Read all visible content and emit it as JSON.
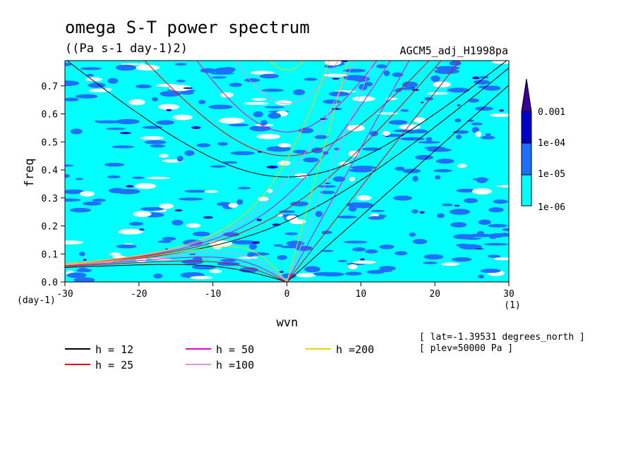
{
  "chart_data": {
    "type": "heatmap",
    "title": "omega S-T power spectrum",
    "subtitle": "((Pa s-1 day-1)2)",
    "run_label": "AGCM5_adj_H1998pa",
    "xlabel": "wvn",
    "ylabel": "freq",
    "x_unit": "(1)",
    "y_unit": "(day-1)",
    "xlim": [
      -30,
      30
    ],
    "ylim": [
      0,
      0.79
    ],
    "xticks": [
      -30,
      -20,
      -10,
      0,
      10,
      20,
      30
    ],
    "xtick_labels": [
      "-30",
      "-20",
      "-10",
      "0",
      "10",
      "20",
      "30"
    ],
    "yticks": [
      0,
      0.1,
      0.2,
      0.3,
      0.4,
      0.5,
      0.6,
      0.7
    ],
    "ytick_labels": [
      "0.0",
      "0.1",
      "0.2",
      "0.3",
      "0.4",
      "0.5",
      "0.6",
      "0.7"
    ],
    "colorbar": {
      "labels": [
        "0.001",
        "1e-04",
        "1e-05",
        "1e-06"
      ],
      "levels": [
        1e-06,
        1e-05,
        0.0001,
        0.001
      ],
      "colors": [
        "#00ffff",
        "#1e6eff",
        "#0000c8",
        "#3c0096"
      ]
    },
    "field_colors": {
      "below": "#ffffff",
      "level1": "#00ffff",
      "level2": "#1e6eff",
      "level3": "#0000c8"
    },
    "dispersion_curves": [
      {
        "label": "h = 12",
        "h": 12,
        "color": "#000000"
      },
      {
        "label": "h = 25",
        "h": 25,
        "color": "#e60000"
      },
      {
        "label": "h = 50",
        "h": 50,
        "color": "#e600c8"
      },
      {
        "label": "h =100",
        "h": 100,
        "color": "#e68ce6"
      },
      {
        "label": "h =200",
        "h": 200,
        "color": "#f0d200"
      }
    ],
    "meta_lines": [
      "[ lat=-1.39531 degrees_north ]",
      "[ plev=50000 Pa ]"
    ]
  }
}
